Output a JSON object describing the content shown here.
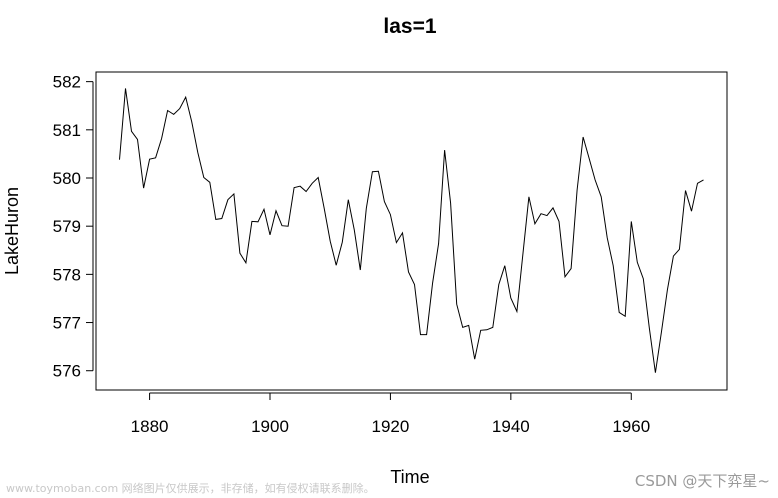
{
  "chart_data": {
    "type": "line",
    "title": "las=1",
    "xlabel": "Time",
    "ylabel": "LakeHuron",
    "xlim": [
      1871.1,
      1975.9
    ],
    "ylim": [
      575.6,
      582.2
    ],
    "xticks": [
      1880,
      1900,
      1920,
      1940,
      1960
    ],
    "yticks": [
      576,
      577,
      578,
      579,
      580,
      581,
      582
    ],
    "grid": false,
    "legend": "none",
    "line_color": "#000000",
    "x": [
      1875,
      1876,
      1877,
      1878,
      1879,
      1880,
      1881,
      1882,
      1883,
      1884,
      1885,
      1886,
      1887,
      1888,
      1889,
      1890,
      1891,
      1892,
      1893,
      1894,
      1895,
      1896,
      1897,
      1898,
      1899,
      1900,
      1901,
      1902,
      1903,
      1904,
      1905,
      1906,
      1907,
      1908,
      1909,
      1910,
      1911,
      1912,
      1913,
      1914,
      1915,
      1916,
      1917,
      1918,
      1919,
      1920,
      1921,
      1922,
      1923,
      1924,
      1925,
      1926,
      1927,
      1928,
      1929,
      1930,
      1931,
      1932,
      1933,
      1934,
      1935,
      1936,
      1937,
      1938,
      1939,
      1940,
      1941,
      1942,
      1943,
      1944,
      1945,
      1946,
      1947,
      1948,
      1949,
      1950,
      1951,
      1952,
      1953,
      1954,
      1955,
      1956,
      1957,
      1958,
      1959,
      1960,
      1961,
      1962,
      1963,
      1964,
      1965,
      1966,
      1967,
      1968,
      1969,
      1970,
      1971,
      1972
    ],
    "values": [
      580.38,
      581.86,
      580.97,
      580.8,
      579.79,
      580.39,
      580.42,
      580.82,
      581.4,
      581.32,
      581.44,
      581.68,
      581.17,
      580.53,
      580.01,
      579.91,
      579.14,
      579.16,
      579.55,
      579.67,
      578.44,
      578.24,
      579.1,
      579.09,
      579.35,
      578.82,
      579.32,
      579.01,
      579.0,
      579.8,
      579.83,
      579.72,
      579.89,
      580.01,
      579.37,
      578.69,
      578.19,
      578.67,
      579.55,
      578.92,
      578.09,
      579.37,
      580.13,
      580.14,
      579.51,
      579.24,
      578.66,
      578.86,
      578.05,
      577.79,
      576.75,
      576.75,
      577.82,
      578.64,
      580.58,
      579.48,
      577.38,
      576.9,
      576.94,
      576.24,
      576.84,
      576.85,
      576.9,
      577.79,
      578.18,
      577.51,
      577.23,
      578.42,
      579.61,
      579.05,
      579.26,
      579.22,
      579.38,
      579.1,
      577.95,
      578.12,
      579.75,
      580.85,
      580.41,
      579.96,
      579.61,
      578.76,
      578.18,
      577.21,
      577.13,
      579.1,
      578.25,
      577.91,
      576.89,
      575.96,
      576.8,
      577.68,
      578.38,
      578.52,
      579.74,
      579.31,
      579.89,
      579.96
    ]
  },
  "watermark": {
    "left_text": "www.toymoban.com 网络图片仅供展示，非存储，如有侵权请联系删除。",
    "right_text": "CSDN @天下弈星~"
  }
}
